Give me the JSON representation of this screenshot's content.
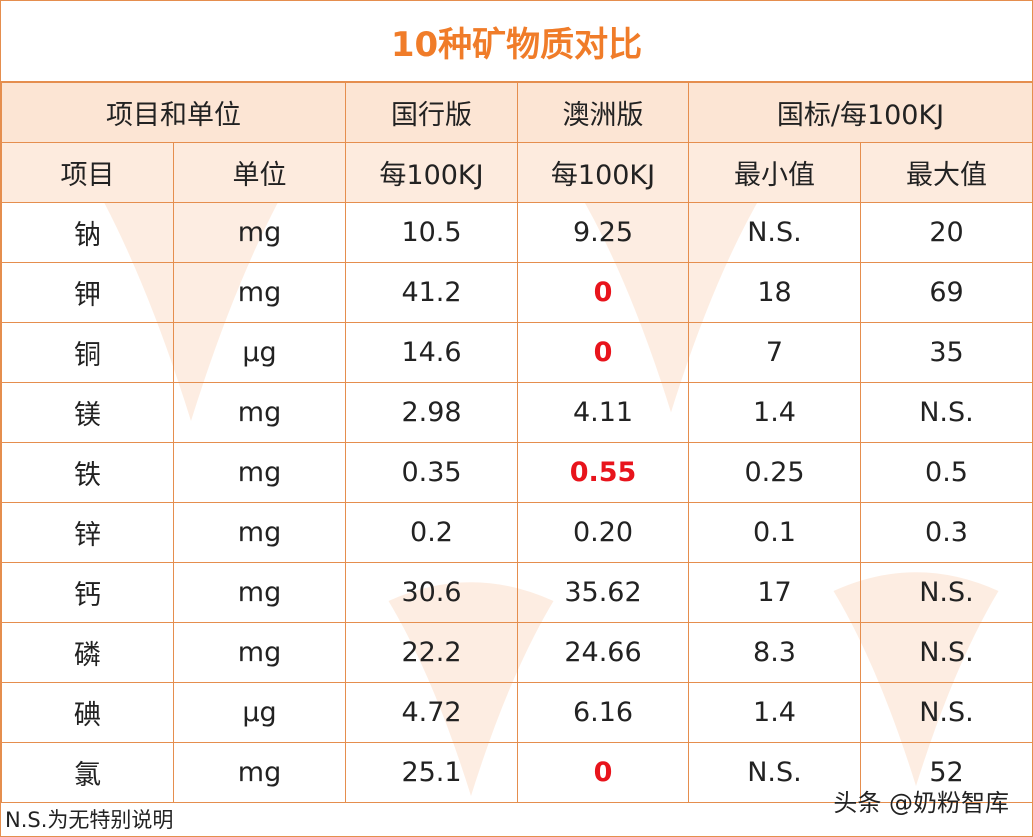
{
  "title": "10种矿物质对比",
  "header_row1": {
    "item_unit": "项目和单位",
    "domestic": "国行版",
    "australia": "澳洲版",
    "standard": "国标/每100KJ"
  },
  "header_row2": {
    "item": "项目",
    "unit": "单位",
    "domestic_per": "每100KJ",
    "australia_per": "每100KJ",
    "min": "最小值",
    "max": "最大值"
  },
  "rows": [
    {
      "item": "钠",
      "unit": "mg",
      "domestic": "10.5",
      "australia": "9.25",
      "min": "N.S.",
      "max": "20",
      "highlight": false
    },
    {
      "item": "钾",
      "unit": "mg",
      "domestic": "41.2",
      "australia": "0",
      "min": "18",
      "max": "69",
      "highlight": true
    },
    {
      "item": "铜",
      "unit": "μg",
      "domestic": "14.6",
      "australia": "0",
      "min": "7",
      "max": "35",
      "highlight": true
    },
    {
      "item": "镁",
      "unit": "mg",
      "domestic": "2.98",
      "australia": "4.11",
      "min": "1.4",
      "max": "N.S.",
      "highlight": false
    },
    {
      "item": "铁",
      "unit": "mg",
      "domestic": "0.35",
      "australia": "0.55",
      "min": "0.25",
      "max": "0.5",
      "highlight": true
    },
    {
      "item": "锌",
      "unit": "mg",
      "domestic": "0.2",
      "australia": "0.20",
      "min": "0.1",
      "max": "0.3",
      "highlight": false
    },
    {
      "item": "钙",
      "unit": "mg",
      "domestic": "30.6",
      "australia": "35.62",
      "min": "17",
      "max": "N.S.",
      "highlight": false
    },
    {
      "item": "磷",
      "unit": "mg",
      "domestic": "22.2",
      "australia": "24.66",
      "min": "8.3",
      "max": "N.S.",
      "highlight": false
    },
    {
      "item": "碘",
      "unit": "μg",
      "domestic": "4.72",
      "australia": "6.16",
      "min": "1.4",
      "max": "N.S.",
      "highlight": false
    },
    {
      "item": "氯",
      "unit": "mg",
      "domestic": "25.1",
      "australia": "0",
      "min": "N.S.",
      "max": "52",
      "highlight": true
    }
  ],
  "footnote": "N.S.为无特别说明",
  "source": "头条 @奶粉智库",
  "colors": {
    "accent": "#f07c29",
    "border": "#e58e4e",
    "header_bg": "#fce5d4",
    "highlight": "#e8141c"
  }
}
